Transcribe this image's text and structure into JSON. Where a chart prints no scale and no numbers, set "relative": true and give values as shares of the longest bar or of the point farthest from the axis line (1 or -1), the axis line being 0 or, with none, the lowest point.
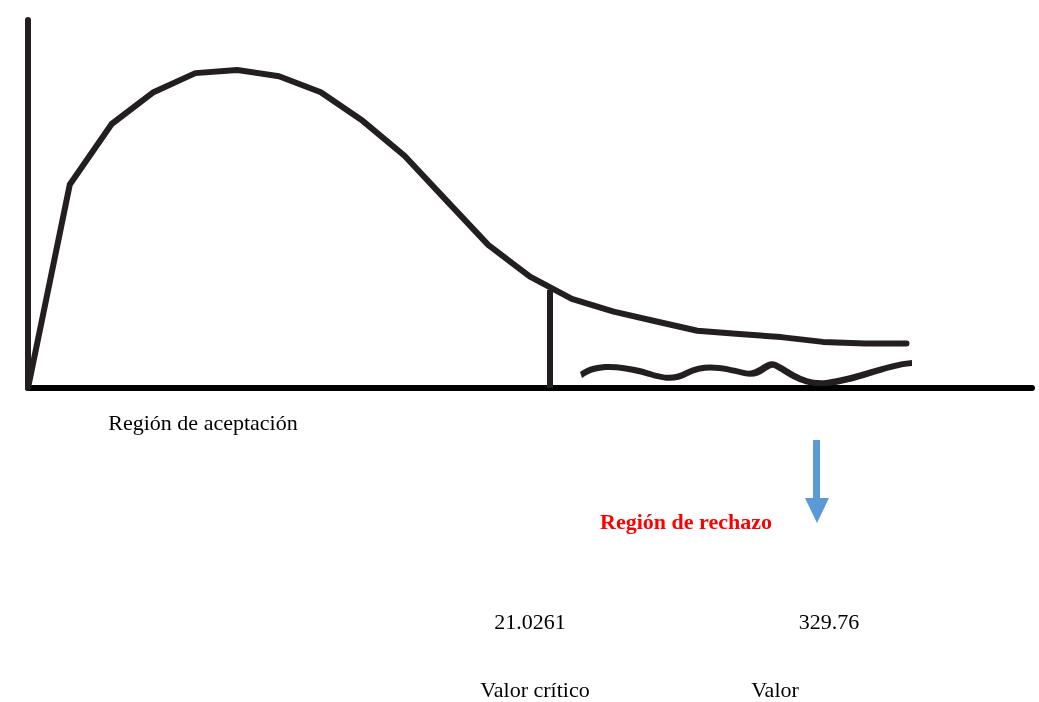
{
  "chart_data": {
    "type": "line",
    "relative": true,
    "color": "#231f20",
    "marker": "none",
    "categories": [
      null,
      null,
      null,
      null,
      null,
      null,
      null,
      null,
      null,
      null,
      null,
      null,
      null,
      null,
      null,
      null,
      null,
      null,
      null,
      null,
      null,
      null,
      null,
      null,
      null
    ],
    "values": [
      0,
      0.64,
      0.83,
      0.93,
      0.99,
      1,
      0.98,
      0.93,
      0.84,
      0.73,
      0.59,
      0.45,
      0.35,
      0.28,
      0.24,
      0.21,
      0.18,
      0.17,
      0.16,
      0.145,
      0.14,
      0.14,
      null,
      null,
      null
    ],
    "annotations": [
      "Región de aceptación",
      "Región de rechazo",
      "21.0261",
      "329.76",
      "Valor crítico",
      "Valor"
    ]
  }
}
